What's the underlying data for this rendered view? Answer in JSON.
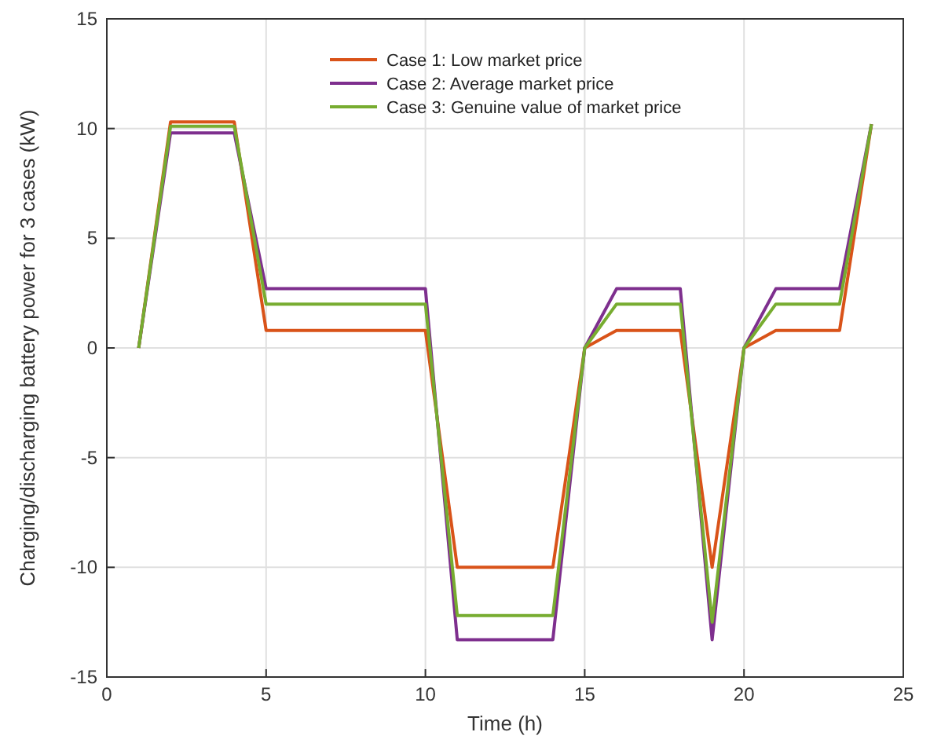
{
  "chart_data": {
    "type": "line",
    "xlabel": "Time (h)",
    "ylabel": "Charging/discharging battery power for 3 cases (kW)",
    "x": [
      1,
      2,
      3,
      4,
      5,
      6,
      7,
      8,
      9,
      10,
      11,
      12,
      13,
      14,
      15,
      16,
      17,
      18,
      19,
      20,
      21,
      22,
      23,
      24
    ],
    "series": [
      {
        "name": "Case 1: Low market price",
        "color": "#d95319",
        "values": [
          0,
          10.3,
          10.3,
          10.3,
          0.8,
          0.8,
          0.8,
          0.8,
          0.8,
          0.8,
          -10,
          -10,
          -10,
          -10,
          0,
          0.8,
          0.8,
          0.8,
          -10,
          0,
          0.8,
          0.8,
          0.8,
          10.2
        ]
      },
      {
        "name": "Case 2: Average market price",
        "color": "#7e2f8e",
        "values": [
          0,
          9.8,
          9.8,
          9.8,
          2.7,
          2.7,
          2.7,
          2.7,
          2.7,
          2.7,
          -13.3,
          -13.3,
          -13.3,
          -13.3,
          0,
          2.7,
          2.7,
          2.7,
          -13.3,
          0,
          2.7,
          2.7,
          2.7,
          10.2
        ]
      },
      {
        "name": "Case 3: Genuine value of market price",
        "color": "#77ac30",
        "values": [
          0,
          10.1,
          10.1,
          10.1,
          2,
          2,
          2,
          2,
          2,
          2,
          -12.2,
          -12.2,
          -12.2,
          -12.2,
          0,
          2,
          2,
          2,
          -12.5,
          0,
          2,
          2,
          2,
          10.2
        ]
      }
    ],
    "xlim": [
      0,
      25
    ],
    "xticks": [
      0,
      5,
      10,
      15,
      20,
      25
    ],
    "ylim": [
      -15,
      15
    ],
    "yticks": [
      -15,
      -10,
      -5,
      0,
      5,
      10,
      15
    ],
    "grid": true,
    "legend": "top",
    "line_style": "solid",
    "marker": "none"
  }
}
